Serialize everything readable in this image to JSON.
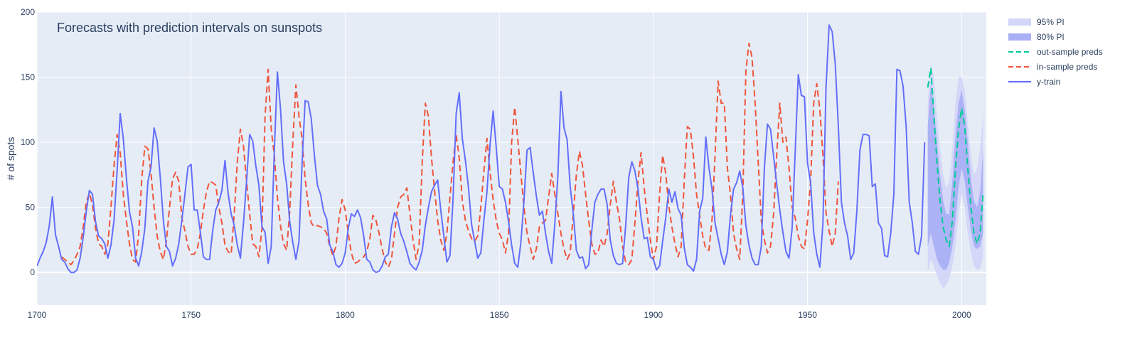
{
  "chart_data": {
    "type": "line",
    "title": "Forecasts with prediction intervals on sunspots",
    "xlabel": "",
    "ylabel": "# of spots",
    "xlim": [
      1700,
      2008
    ],
    "ylim": [
      -25,
      200
    ],
    "x_ticks": [
      "1700",
      "1750",
      "1800",
      "1850",
      "1900",
      "1950",
      "2000"
    ],
    "y_ticks": [
      "0",
      "50",
      "100",
      "150",
      "200"
    ],
    "grid": true,
    "legend_position": "top-right",
    "colors": {
      "plot_bg": "#E5ECF6",
      "grid": "#FFFFFF",
      "text": "#2A3F5F",
      "y_train": "#636EFA",
      "in_sample": "#EF553B",
      "out_sample": "#00CC96",
      "pi80": "#AAB0F5",
      "pi95": "#D3D6F8"
    },
    "series": [
      {
        "name": "y-train",
        "style": "solid",
        "x_start": 1700,
        "values": [
          5,
          11,
          16,
          23,
          36,
          58,
          29,
          20,
          10,
          8,
          3,
          0,
          0,
          2,
          11,
          27,
          47,
          63,
          60,
          39,
          28,
          26,
          22,
          11,
          21,
          40,
          78,
          122,
          103,
          73,
          47,
          35,
          11,
          5,
          16,
          34,
          70,
          81,
          111,
          101,
          73,
          40,
          20,
          16,
          5,
          11,
          22,
          40,
          60,
          81,
          83,
          48,
          48,
          31,
          12,
          10,
          10,
          32,
          48,
          54,
          63,
          86,
          61,
          45,
          36,
          21,
          11,
          38,
          70,
          106,
          101,
          82,
          67,
          35,
          31,
          7,
          20,
          93,
          154,
          126,
          85,
          68,
          39,
          23,
          10,
          24,
          83,
          132,
          131,
          118,
          90,
          67,
          60,
          47,
          41,
          21,
          16,
          6,
          4,
          7,
          15,
          34,
          45,
          43,
          48,
          42,
          28,
          10,
          8,
          2,
          0,
          1,
          5,
          12,
          14,
          35,
          46,
          41,
          30,
          24,
          16,
          7,
          4,
          2,
          8,
          17,
          36,
          50,
          62,
          67,
          71,
          48,
          28,
          8,
          13,
          57,
          122,
          138,
          103,
          86,
          65,
          37,
          24,
          11,
          15,
          40,
          62,
          98,
          124,
          96,
          66,
          64,
          54,
          39,
          21,
          7,
          4,
          23,
          55,
          94,
          96,
          77,
          59,
          44,
          47,
          30,
          16,
          7,
          37,
          74,
          139,
          111,
          102,
          66,
          45,
          17,
          11,
          12,
          3,
          6,
          32,
          54,
          60,
          64,
          64,
          52,
          25,
          13,
          7,
          6,
          7,
          36,
          73,
          85,
          78,
          64,
          42,
          26,
          27,
          12,
          10,
          2,
          5,
          24,
          42,
          64,
          54,
          62,
          49,
          44,
          19,
          6,
          4,
          1,
          10,
          47,
          57,
          104,
          81,
          64,
          38,
          26,
          14,
          6,
          16,
          44,
          64,
          69,
          78,
          65,
          36,
          21,
          11,
          6,
          6,
          20,
          80,
          114,
          110,
          89,
          68,
          48,
          31,
          16,
          11,
          34,
          93,
          152,
          136,
          135,
          84,
          69,
          31,
          14,
          4,
          38,
          142,
          190,
          185,
          160,
          112,
          54,
          38,
          28,
          10,
          15,
          47,
          94,
          106,
          106,
          105,
          66,
          68,
          38,
          34,
          13,
          12,
          30,
          60,
          156,
          155,
          143,
          112,
          54,
          38,
          16,
          14,
          28,
          100
        ]
      },
      {
        "name": "in-sample preds",
        "style": "dash",
        "x_start": 1708,
        "values": [
          12,
          10,
          8,
          6,
          9,
          14,
          20,
          35,
          54,
          61,
          52,
          34,
          22,
          20,
          14,
          22,
          50,
          82,
          106,
          92,
          60,
          40,
          22,
          10,
          8,
          30,
          72,
          97,
          95,
          76,
          50,
          28,
          16,
          10,
          24,
          50,
          72,
          77,
          70,
          42,
          32,
          20,
          14,
          14,
          18,
          30,
          48,
          62,
          70,
          69,
          67,
          50,
          38,
          21,
          16,
          14,
          45,
          85,
          110,
          97,
          70,
          45,
          22,
          20,
          12,
          34,
          120,
          156,
          110,
          90,
          58,
          36,
          22,
          17,
          47,
          100,
          144,
          120,
          103,
          72,
          52,
          38,
          35,
          36,
          35,
          34,
          30,
          20,
          13,
          20,
          42,
          56,
          48,
          30,
          15,
          7,
          8,
          10,
          12,
          16,
          26,
          44,
          40,
          30,
          18,
          8,
          4,
          10,
          30,
          50,
          58,
          60,
          65,
          45,
          25,
          10,
          22,
          85,
          130,
          120,
          88,
          63,
          40,
          25,
          17,
          30,
          58,
          85,
          106,
          88,
          55,
          40,
          32,
          26,
          24,
          28,
          50,
          78,
          103,
          77,
          56,
          40,
          30,
          25,
          15,
          30,
          100,
          127,
          102,
          76,
          50,
          30,
          20,
          10,
          18,
          35,
          38,
          40,
          58,
          76,
          60,
          45,
          30,
          18,
          10,
          15,
          45,
          75,
          93,
          82,
          60,
          40,
          22,
          14,
          15,
          25,
          20,
          30,
          52,
          70,
          54,
          41,
          20,
          8,
          6,
          10,
          38,
          70,
          92,
          65,
          44,
          25,
          10,
          20,
          60,
          90,
          76,
          51,
          35,
          22,
          12,
          20,
          70,
          112,
          110,
          89,
          60,
          44,
          28,
          18,
          17,
          40,
          90,
          147,
          130,
          130,
          80,
          60,
          30,
          18,
          10,
          60,
          155,
          176,
          165,
          130,
          85,
          40,
          25,
          15,
          20,
          45,
          90,
          130,
          100,
          104,
          80,
          50,
          42,
          28,
          20,
          18,
          40,
          70,
          130,
          145,
          125,
          90,
          46,
          32,
          20,
          30,
          70
        ]
      },
      {
        "name": "out-sample preds",
        "style": "dash",
        "x_start": 1989,
        "values": [
          142,
          157,
          120,
          85,
          55,
          35,
          25,
          20,
          40,
          80,
          110,
          126,
          112,
          80,
          50,
          30,
          22,
          30,
          62
        ]
      }
    ],
    "intervals": [
      {
        "name": "95% PI",
        "x_start": 1989,
        "lower": [
          0,
          10,
          5,
          -2,
          -8,
          -12,
          -10,
          -5,
          5,
          20,
          45,
          60,
          50,
          30,
          15,
          5,
          2,
          3,
          12
        ],
        "upper": [
          130,
          160,
          150,
          120,
          95,
          75,
          65,
          70,
          95,
          130,
          150,
          150,
          140,
          115,
          90,
          75,
          80,
          95,
          122
        ]
      },
      {
        "name": "80% PI",
        "x_start": 1989,
        "lower": [
          20,
          30,
          20,
          10,
          5,
          2,
          2,
          8,
          20,
          40,
          65,
          80,
          70,
          50,
          32,
          20,
          18,
          20,
          30
        ],
        "upper": [
          112,
          145,
          128,
          100,
          75,
          55,
          45,
          45,
          70,
          105,
          130,
          140,
          125,
          100,
          72,
          55,
          50,
          62,
          95
        ]
      }
    ]
  }
}
